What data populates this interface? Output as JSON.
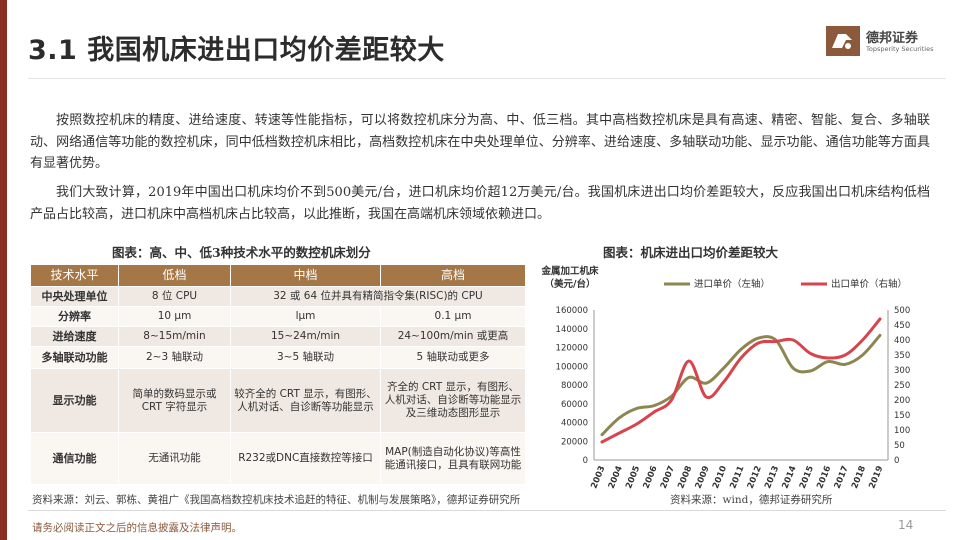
{
  "header": {
    "title": "3.1 我国机床进出口均价差距较大",
    "logo_name": "德邦证券",
    "logo_name_en": "Topsperity Securities"
  },
  "paragraphs": [
    "按照数控机床的精度、进给速度、转速等性能指标，可以将数控机床分为高、中、低三档。其中高档数控机床是具有高速、精密、智能、复合、多轴联动、网络通信等功能的数控机床，同中低档数控机床相比，高档数控机床在中央处理单位、分辨率、进给速度、多轴联动功能、显示功能、通信功能等方面具有显著优势。",
    "我们大致计算，2019年中国出口机床均价不到500美元/台，进口机床均价超12万美元/台。我国机床进出口均价差距较大，反应我国出口机床结构低档产品占比较高，进口机床中高档机床占比较高，以此推断，我国在高端机床领域依赖进口。"
  ],
  "table": {
    "caption": "图表：高、中、低3种技术水平的数控机床划分",
    "headers": [
      "技术水平",
      "低档",
      "中档",
      "高档"
    ],
    "rows": [
      [
        "中央处理单位",
        "8 位 CPU",
        "32 或 64 位并具有精简指令集(RISC)的 CPU",
        ""
      ],
      [
        "分辨率",
        "10 μm",
        "lμm",
        "0.1 μm"
      ],
      [
        "进给速度",
        "8~15m/min",
        "15~24m/min",
        "24~100m/min 或更高"
      ],
      [
        "多轴联动功能",
        "2~3 轴联动",
        "3~5 轴联动",
        "5 轴联动或更多"
      ],
      [
        "显示功能",
        "简单的数码显示或 CRT 字符显示",
        "较齐全的 CRT 显示，有图形、人机对话、自诊断等功能显示",
        "齐全的 CRT 显示，有图形、人机对话、自诊断等功能显示及三维动态图形显示"
      ],
      [
        "通信功能",
        "无通讯功能",
        "R232或DNC直接数控等接口",
        "MAP(制造自动化协议)等高性能通讯接口，且具有联网功能"
      ]
    ],
    "source": "资料来源：刘云、郭栋、黄祖广《我国高档数控机床技术追赶的特征、机制与发展策略》，德邦证券研究所"
  },
  "chart_caption": "图表：机床进出口均价差距较大",
  "chart_data": {
    "type": "line",
    "ylabel": "金属加工机床（美元/台）",
    "x": [
      "2003",
      "2004",
      "2005",
      "2006",
      "2007",
      "2008",
      "2009",
      "2010",
      "2011",
      "2012",
      "2013",
      "2014",
      "2015",
      "2016",
      "2017",
      "2018",
      "2019"
    ],
    "ylim": [
      0,
      160000
    ],
    "y_ticks": [
      "0",
      "20000",
      "40000",
      "60000",
      "80000",
      "100000",
      "120000",
      "140000",
      "160000"
    ],
    "y2lim": [
      0,
      500
    ],
    "y2_ticks": [
      "0",
      "50",
      "100",
      "150",
      "200",
      "250",
      "300",
      "350",
      "400",
      "450",
      "500"
    ],
    "legend_position": "top",
    "series": [
      {
        "name": "进口单价（左轴）",
        "axis": "left",
        "color": "#8c8650",
        "values": [
          27000,
          45000,
          55000,
          58000,
          68000,
          88000,
          82000,
          98000,
          118000,
          130000,
          128000,
          98000,
          95000,
          105000,
          102000,
          112000,
          133000
        ]
      },
      {
        "name": "出口单价（右轴）",
        "axis": "right",
        "color": "#d6454e",
        "values": [
          60,
          90,
          120,
          160,
          200,
          330,
          210,
          260,
          340,
          390,
          395,
          400,
          355,
          340,
          350,
          400,
          470
        ]
      }
    ],
    "source": "资料来源：wind，德邦证券研究所"
  },
  "footer": {
    "disclaimer": "请务必阅读正文之后的信息披露及法律声明。",
    "page": "14"
  }
}
